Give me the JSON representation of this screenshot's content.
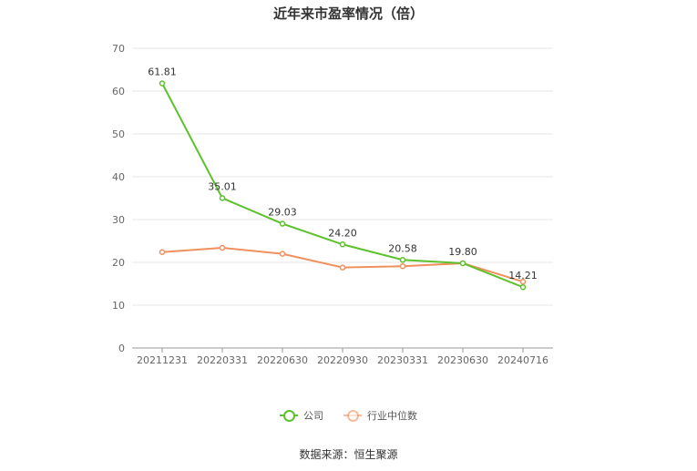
{
  "chart_data": {
    "type": "line",
    "title": "近年来市盈率情况（倍）",
    "categories": [
      "20211231",
      "20220331",
      "20220630",
      "20220930",
      "20230331",
      "20230630",
      "20240716"
    ],
    "series": [
      {
        "name": "公司",
        "color": "#5cc12c",
        "values": [
          61.81,
          35.01,
          29.03,
          24.2,
          20.58,
          19.8,
          14.21
        ],
        "labels": [
          "61.81",
          "35.01",
          "29.03",
          "24.20",
          "20.58",
          "19.80",
          "14.21"
        ]
      },
      {
        "name": "行业中位数",
        "color": "#f0905f",
        "values": [
          22.4,
          23.4,
          22.0,
          18.8,
          19.1,
          19.8,
          15.5
        ]
      }
    ],
    "ylim": [
      0,
      70
    ],
    "yticks": [
      "0",
      "10",
      "20",
      "30",
      "40",
      "50",
      "60",
      "70"
    ],
    "xlabel": "",
    "ylabel": "",
    "grid": true,
    "legend": "bottom-center"
  },
  "source": "数据来源：恒生聚源"
}
